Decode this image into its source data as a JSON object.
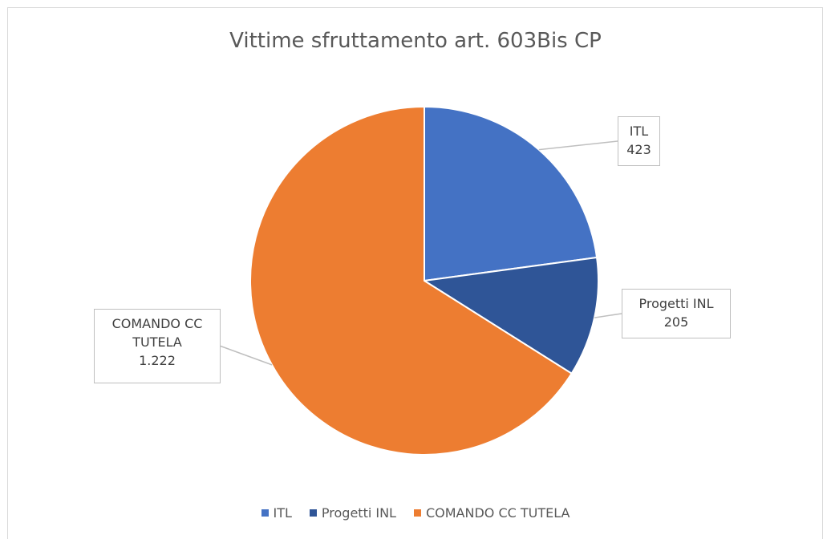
{
  "chart_data": {
    "type": "pie",
    "title": "Vittime sfruttamento art. 603Bis CP",
    "categories": [
      "ITL",
      "Progetti INL",
      "COMANDO CC TUTELA"
    ],
    "values": [
      423,
      205,
      1222
    ],
    "value_labels": [
      "423",
      "205",
      "1.222"
    ],
    "colors": [
      "#4472c4",
      "#2f5597",
      "#ed7d31"
    ],
    "legend": "bottom"
  }
}
